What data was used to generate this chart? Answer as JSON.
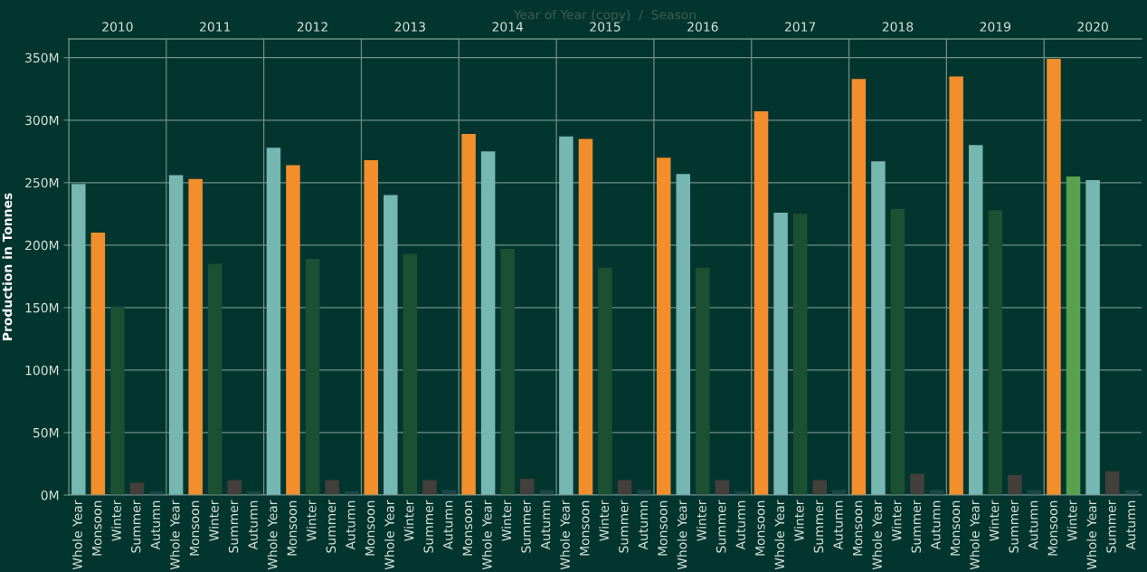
{
  "chart_data": {
    "type": "bar",
    "ylabel": "Production in Tonnes",
    "x2label": "Year of Year (copy)  /  Season",
    "categories": [
      "Whole Year",
      "Monsoon",
      "Winter",
      "Summer",
      "Autumn",
      "Whole Year",
      "Monsoon",
      "Winter",
      "Summer",
      "Autumn",
      "Whole Year",
      "Monsoon",
      "Winter",
      "Summer",
      "Autumn",
      "Monsoon",
      "Whole Year",
      "Winter",
      "Summer",
      "Autumn",
      "Monsoon",
      "Whole Year",
      "Winter",
      "Summer",
      "Autumn",
      "Whole Year",
      "Monsoon",
      "Winter",
      "Summer",
      "Autumn",
      "Monsoon",
      "Whole Year",
      "Winter",
      "Summer",
      "Autumn",
      "Monsoon",
      "Whole Year",
      "Winter",
      "Summer",
      "Autumn",
      "Monsoon",
      "Whole Year",
      "Winter",
      "Summer",
      "Autumn",
      "Monsoon",
      "Whole Year",
      "Winter",
      "Summer",
      "Autumn",
      "Monsoon",
      "Winter",
      "Whole Year",
      "Summer",
      "Autumn"
    ],
    "values": [
      249,
      210,
      151,
      10,
      3,
      256,
      253,
      185,
      12,
      3,
      278,
      264,
      189,
      12,
      3,
      268,
      240,
      193,
      12,
      4,
      289,
      275,
      197,
      13,
      4,
      287,
      285,
      182,
      12,
      4,
      270,
      257,
      182,
      12,
      3,
      307,
      226,
      225,
      12,
      4,
      333,
      267,
      229,
      17,
      4,
      335,
      280,
      228,
      16,
      4,
      349,
      255,
      252,
      19,
      4
    ],
    "colors": [
      "#76b7b2",
      "#f28e2b",
      "#1c5033",
      "#433f3a",
      "#1d4648",
      "#76b7b2",
      "#f28e2b",
      "#1c5033",
      "#433f3a",
      "#1d4648",
      "#76b7b2",
      "#f28e2b",
      "#1c5033",
      "#433f3a",
      "#1d4648",
      "#f28e2b",
      "#76b7b2",
      "#1c5033",
      "#433f3a",
      "#1d4648",
      "#f28e2b",
      "#76b7b2",
      "#1c5033",
      "#433f3a",
      "#1d4648",
      "#76b7b2",
      "#f28e2b",
      "#1c5033",
      "#433f3a",
      "#1d4648",
      "#f28e2b",
      "#76b7b2",
      "#1c5033",
      "#433f3a",
      "#1d4648",
      "#f28e2b",
      "#76b7b2",
      "#1c5033",
      "#433f3a",
      "#1d4648",
      "#f28e2b",
      "#76b7b2",
      "#1c5033",
      "#433f3a",
      "#1d4648",
      "#f28e2b",
      "#76b7b2",
      "#1c5033",
      "#433f3a",
      "#1d4648",
      "#f28e2b",
      "#59a14f",
      "#76b7b2",
      "#433f3a",
      "#1d4648"
    ],
    "ylim": [
      0,
      365
    ],
    "yticks": [
      {
        "value": 0,
        "label": "0M"
      },
      {
        "value": 50,
        "label": "50M"
      },
      {
        "value": 100,
        "label": "100M"
      },
      {
        "value": 150,
        "label": "150M"
      },
      {
        "value": 200,
        "label": "200M"
      },
      {
        "value": 250,
        "label": "250M"
      },
      {
        "value": 300,
        "label": "300M"
      },
      {
        "value": 350,
        "label": "350M"
      }
    ],
    "x2lim": [
      2009.5,
      2020.5
    ],
    "x2ticks": [
      {
        "value": 2009.5,
        "label": null
      },
      2010,
      {
        "value": 2010.5,
        "label": null
      },
      2011,
      {
        "value": 2011.5,
        "label": null
      },
      2012,
      {
        "value": 2012.5,
        "label": null
      },
      2013,
      {
        "value": 2013.5,
        "label": null
      },
      2014,
      {
        "value": 2014.5,
        "label": null
      },
      2015,
      {
        "value": 2015.5,
        "label": null
      },
      2016,
      {
        "value": 2016.5,
        "label": null
      },
      2017,
      {
        "value": 2017.5,
        "label": null
      },
      2018,
      {
        "value": 2018.5,
        "label": null
      },
      2019,
      {
        "value": 2019.5,
        "label": null
      },
      2020
    ],
    "grid": true
  }
}
